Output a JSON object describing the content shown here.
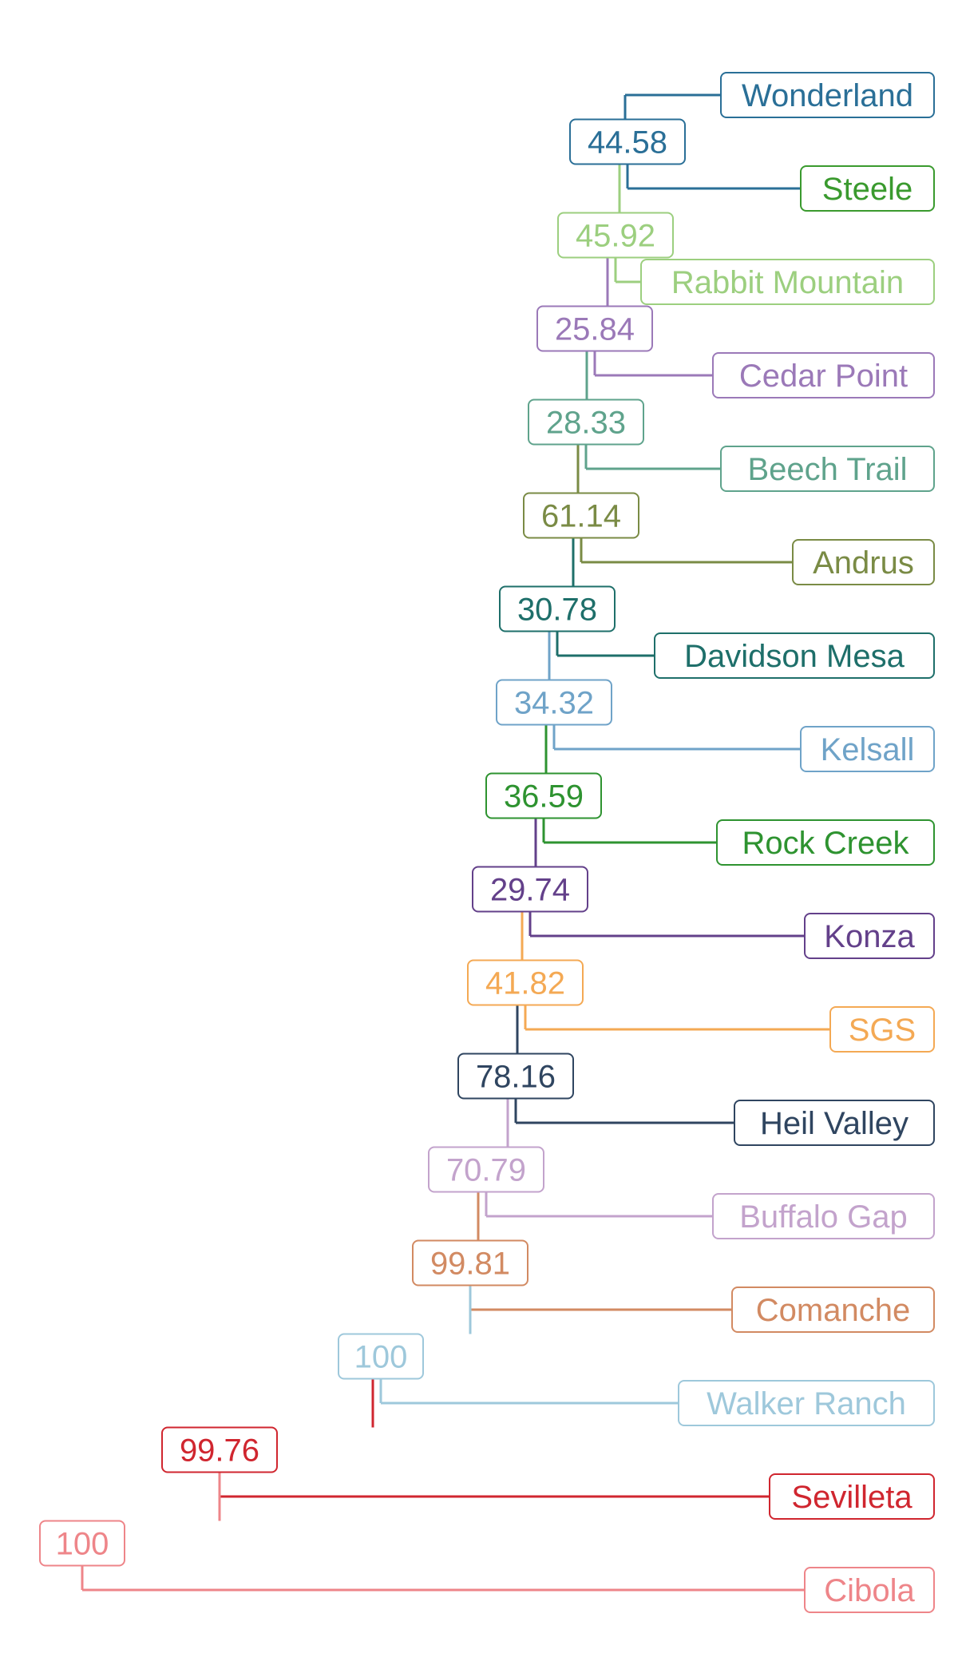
{
  "leaves": [
    {
      "name": "Wonderland",
      "color": "#2A6F97"
    },
    {
      "name": "Steele",
      "color": "#3A9A2E"
    },
    {
      "name": "Rabbit Mountain",
      "color": "#9CCF7F"
    },
    {
      "name": "Cedar Point",
      "color": "#9B79B8"
    },
    {
      "name": "Beech Trail",
      "color": "#5FA38C"
    },
    {
      "name": "Andrus",
      "color": "#7A8B45"
    },
    {
      "name": "Davidson Mesa",
      "color": "#1E6F6A"
    },
    {
      "name": "Kelsall",
      "color": "#6FA3C8"
    },
    {
      "name": "Rock Creek",
      "color": "#2E9330"
    },
    {
      "name": "Konza",
      "color": "#63408A"
    },
    {
      "name": "SGS",
      "color": "#F4A954"
    },
    {
      "name": "Heil Valley",
      "color": "#2F4560"
    },
    {
      "name": "Buffalo Gap",
      "color": "#C3A3CC"
    },
    {
      "name": "Comanche",
      "color": "#D28A62"
    },
    {
      "name": "Walker Ranch",
      "color": "#9EC8DB"
    },
    {
      "name": "Sevilleta",
      "color": "#D0262F"
    },
    {
      "name": "Cibola",
      "color": "#EE8589"
    }
  ],
  "nodes": [
    {
      "label": "44.58",
      "color": "#2A6F97"
    },
    {
      "label": "45.92",
      "color": "#9CCF7F"
    },
    {
      "label": "25.84",
      "color": "#9B79B8"
    },
    {
      "label": "28.33",
      "color": "#5FA38C"
    },
    {
      "label": "61.14",
      "color": "#7A8B45"
    },
    {
      "label": "30.78",
      "color": "#1E6F6A"
    },
    {
      "label": "34.32",
      "color": "#6FA3C8"
    },
    {
      "label": "36.59",
      "color": "#2E9330"
    },
    {
      "label": "29.74",
      "color": "#63408A"
    },
    {
      "label": "41.82",
      "color": "#F4A954"
    },
    {
      "label": "78.16",
      "color": "#2F4560"
    },
    {
      "label": "70.79",
      "color": "#C3A3CC"
    },
    {
      "label": "99.81",
      "color": "#D28A62"
    },
    {
      "label": "100",
      "color": "#9EC8DB"
    },
    {
      "label": "99.76",
      "color": "#D0262F"
    },
    {
      "label": "100",
      "color": "#EE8589"
    }
  ]
}
